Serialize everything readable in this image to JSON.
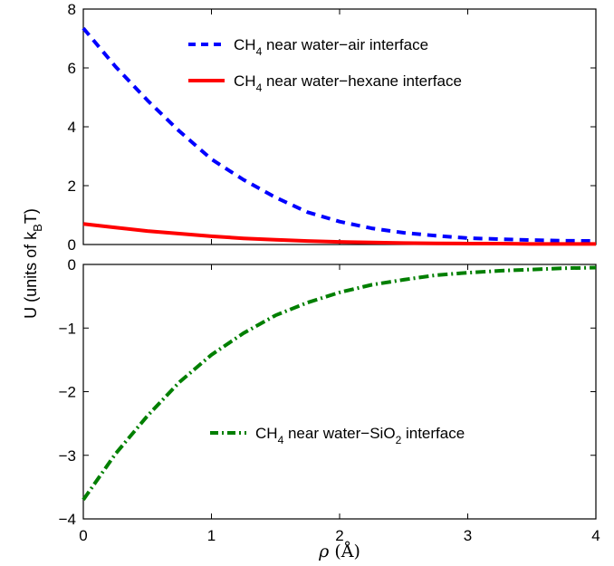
{
  "chart_data": {
    "type": "line",
    "shared_x": {
      "label_symbol": "ρ",
      "label_unit": "(Å)",
      "ticks": [
        "0",
        "1",
        "2",
        "3",
        "4"
      ],
      "range": [
        0,
        4
      ]
    },
    "ylabel": {
      "prefix": "U (units of k",
      "sub": "B",
      "suffix": "T)"
    },
    "panels": [
      {
        "ylim": [
          0,
          8
        ],
        "y_ticks": [
          "0",
          "2",
          "4",
          "6",
          "8"
        ],
        "legend_position": "top-right",
        "series": [
          {
            "name": "CH4 near water−air interface",
            "name_parts": {
              "pre": "CH",
              "sub": "4",
              "post": " near water−air interface"
            },
            "color": "#0000ff",
            "style": "dashed",
            "x": [
              0,
              0.25,
              0.5,
              0.75,
              1.0,
              1.25,
              1.5,
              1.75,
              2.0,
              2.25,
              2.5,
              2.75,
              3.0,
              3.25,
              3.5,
              3.75,
              4.0
            ],
            "y": [
              7.35,
              6.05,
              4.9,
              3.85,
              2.9,
              2.2,
              1.6,
              1.1,
              0.78,
              0.55,
              0.4,
              0.3,
              0.22,
              0.18,
              0.15,
              0.13,
              0.12
            ]
          },
          {
            "name": "CH4 near water−hexane interface",
            "name_parts": {
              "pre": "CH",
              "sub": "4",
              "post": " near water−hexane interface"
            },
            "color": "#ff0000",
            "style": "solid",
            "x": [
              0,
              0.25,
              0.5,
              0.75,
              1.0,
              1.25,
              1.5,
              1.75,
              2.0,
              2.25,
              2.5,
              2.75,
              3.0,
              3.25,
              3.5,
              3.75,
              4.0
            ],
            "y": [
              0.7,
              0.58,
              0.46,
              0.37,
              0.28,
              0.21,
              0.16,
              0.12,
              0.09,
              0.07,
              0.05,
              0.04,
              0.03,
              0.03,
              0.02,
              0.02,
              0.02
            ]
          }
        ]
      },
      {
        "ylim": [
          -4,
          0
        ],
        "y_ticks": [
          "−4",
          "−3",
          "−2",
          "−1",
          "0"
        ],
        "legend_position": "lower-right",
        "series": [
          {
            "name": "CH4 near water−SiO2 interface",
            "name_parts": {
              "pre": "CH",
              "sub": "4",
              "mid": " near water−SiO",
              "sub2": "2",
              "post": " interface"
            },
            "color": "#007f00",
            "style": "dash-dot",
            "x": [
              0,
              0.25,
              0.5,
              0.75,
              1.0,
              1.25,
              1.5,
              1.75,
              2.0,
              2.25,
              2.5,
              2.75,
              3.0,
              3.25,
              3.5,
              3.75,
              4.0
            ],
            "y": [
              -3.7,
              -2.98,
              -2.38,
              -1.85,
              -1.42,
              -1.08,
              -0.8,
              -0.6,
              -0.44,
              -0.32,
              -0.24,
              -0.17,
              -0.13,
              -0.1,
              -0.08,
              -0.06,
              -0.05
            ]
          }
        ]
      }
    ]
  }
}
